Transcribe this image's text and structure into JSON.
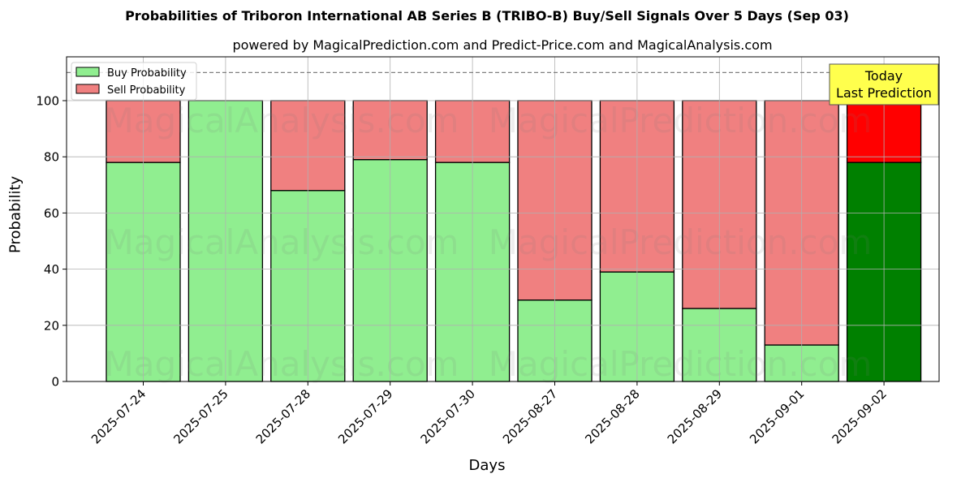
{
  "header": {
    "title": "Probabilities of Triboron International AB Series B (TRIBO-B) Buy/Sell Signals Over 5 Days (Sep 03)",
    "subtitle": "powered by MagicalPrediction.com and Predict-Price.com and MagicalAnalysis.com"
  },
  "legend": {
    "buy": "Buy Probability",
    "sell": "Sell Probability"
  },
  "annotation": {
    "line1": "Today",
    "line2": "Last Prediction"
  },
  "watermarks": [
    "MagicalAnalysis.com",
    "MagicalPrediction.com"
  ],
  "colors": {
    "buy": "#90ee90",
    "sell": "#f08080",
    "buy_today": "#008000",
    "sell_today": "#ff0000",
    "annotation_bg": "#ffff4d"
  },
  "chart_data": {
    "type": "bar",
    "stacked": true,
    "title": "Probabilities of Triboron International AB Series B (TRIBO-B) Buy/Sell Signals Over 5 Days (Sep 03)",
    "subtitle": "powered by MagicalPrediction.com and Predict-Price.com and MagicalAnalysis.com",
    "xlabel": "Days",
    "ylabel": "Probability",
    "ylim": [
      0,
      115
    ],
    "yticks": [
      0,
      20,
      40,
      60,
      80,
      100
    ],
    "reference_line": 110,
    "grid": true,
    "legend_position": "upper left",
    "categories": [
      "2025-07-24",
      "2025-07-25",
      "2025-07-28",
      "2025-07-29",
      "2025-07-30",
      "2025-08-27",
      "2025-08-28",
      "2025-08-29",
      "2025-09-01",
      "2025-09-02"
    ],
    "series": [
      {
        "name": "Buy Probability",
        "values": [
          78,
          100,
          68,
          79,
          78,
          29,
          39,
          26,
          13,
          78
        ]
      },
      {
        "name": "Sell Probability",
        "values": [
          22,
          0,
          32,
          21,
          22,
          71,
          61,
          74,
          87,
          22
        ]
      }
    ],
    "annotations": [
      {
        "text": "Today\nLast Prediction",
        "category": "2025-09-02"
      }
    ]
  }
}
